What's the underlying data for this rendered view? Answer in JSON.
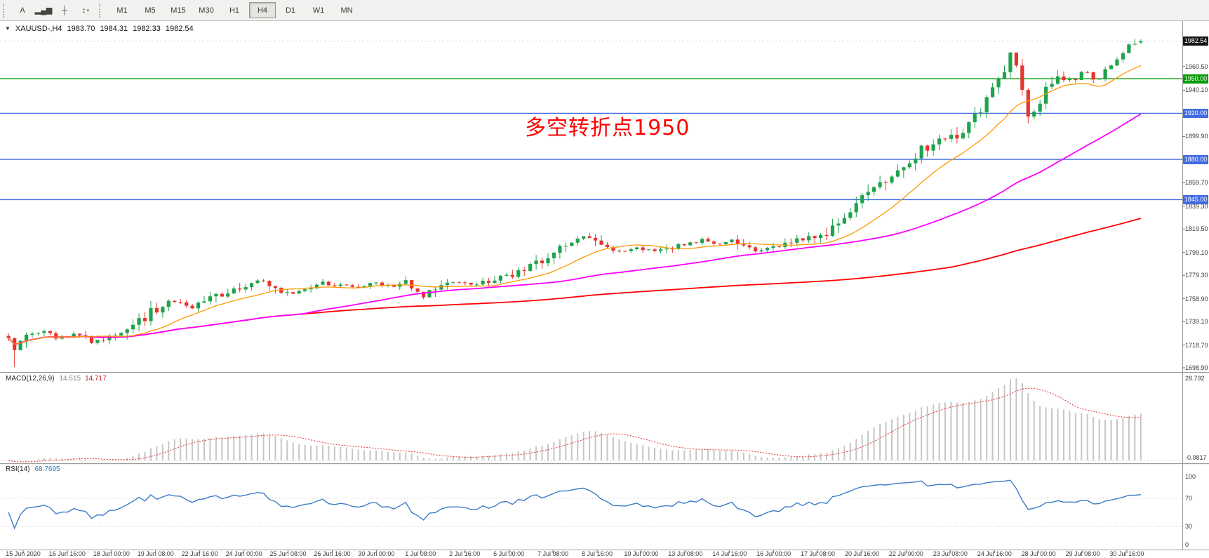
{
  "toolbar": {
    "icon_buttons": [
      {
        "name": "text-tool",
        "glyph": "A"
      },
      {
        "name": "chart-bars",
        "glyph": "▂▄▆"
      },
      {
        "name": "crosshair",
        "glyph": "┼"
      },
      {
        "name": "indicators",
        "glyph": "↕",
        "has_dropdown": true
      }
    ],
    "dropdown_glyph": "▾",
    "timeframes": [
      {
        "label": "M1",
        "active": false
      },
      {
        "label": "M5",
        "active": false
      },
      {
        "label": "M15",
        "active": false
      },
      {
        "label": "M30",
        "active": false
      },
      {
        "label": "H1",
        "active": false
      },
      {
        "label": "H4",
        "active": true
      },
      {
        "label": "D1",
        "active": false
      },
      {
        "label": "W1",
        "active": false
      },
      {
        "label": "MN",
        "active": false
      }
    ]
  },
  "chart": {
    "header": {
      "symbol_period": "XAUUSD-,H4",
      "open": "1983.70",
      "high": "1984.31",
      "low": "1982.33",
      "close": "1982.54"
    },
    "annotation": {
      "text": "多空转折点1950",
      "color": "#ff0000"
    },
    "current_price": {
      "label": "1982.54",
      "value": 1982.54,
      "bg": "#141414"
    },
    "hlines": [
      {
        "value": 1950.0,
        "label": "1950.00",
        "color": "#009b00"
      },
      {
        "value": 1920.0,
        "label": "1920.00",
        "color": "#4169e1"
      },
      {
        "value": 1880.0,
        "label": "1880.00",
        "color": "#4169e1"
      },
      {
        "value": 1845.0,
        "label": "1845.00",
        "color": "#4169e1"
      }
    ],
    "price_ticks": [
      "1960.50",
      "1940.10",
      "1899.90",
      "1859.70",
      "1839.30",
      "1819.50",
      "1799.10",
      "1779.30",
      "1758.90",
      "1739.10",
      "1718.70",
      "1698.90"
    ],
    "colors": {
      "up": "#1fa34d",
      "down": "#e6352b",
      "ma_fast": "#ff9800",
      "ma_mid": "#ff00ff",
      "ma_slow": "#ff0000"
    },
    "price_path": [
      [
        0.0,
        1726
      ],
      [
        0.006,
        1714
      ],
      [
        0.014,
        1727
      ],
      [
        0.03,
        1730
      ],
      [
        0.045,
        1724
      ],
      [
        0.06,
        1729
      ],
      [
        0.075,
        1721
      ],
      [
        0.09,
        1727
      ],
      [
        0.105,
        1731
      ],
      [
        0.118,
        1740
      ],
      [
        0.132,
        1752
      ],
      [
        0.148,
        1757
      ],
      [
        0.162,
        1751
      ],
      [
        0.178,
        1758
      ],
      [
        0.192,
        1764
      ],
      [
        0.208,
        1769
      ],
      [
        0.22,
        1775
      ],
      [
        0.232,
        1769
      ],
      [
        0.248,
        1763
      ],
      [
        0.262,
        1766
      ],
      [
        0.278,
        1772
      ],
      [
        0.292,
        1771
      ],
      [
        0.308,
        1768
      ],
      [
        0.322,
        1774
      ],
      [
        0.338,
        1769
      ],
      [
        0.352,
        1773
      ],
      [
        0.365,
        1759
      ],
      [
        0.378,
        1769
      ],
      [
        0.392,
        1774
      ],
      [
        0.408,
        1771
      ],
      [
        0.422,
        1773
      ],
      [
        0.438,
        1777
      ],
      [
        0.452,
        1783
      ],
      [
        0.468,
        1789
      ],
      [
        0.482,
        1799
      ],
      [
        0.498,
        1808
      ],
      [
        0.51,
        1813
      ],
      [
        0.524,
        1806
      ],
      [
        0.538,
        1799
      ],
      [
        0.552,
        1804
      ],
      [
        0.568,
        1800
      ],
      [
        0.582,
        1803
      ],
      [
        0.598,
        1806
      ],
      [
        0.612,
        1810
      ],
      [
        0.628,
        1807
      ],
      [
        0.642,
        1810
      ],
      [
        0.658,
        1798
      ],
      [
        0.672,
        1803
      ],
      [
        0.688,
        1807
      ],
      [
        0.702,
        1811
      ],
      [
        0.718,
        1815
      ],
      [
        0.732,
        1822
      ],
      [
        0.748,
        1840
      ],
      [
        0.762,
        1855
      ],
      [
        0.778,
        1866
      ],
      [
        0.792,
        1878
      ],
      [
        0.808,
        1889
      ],
      [
        0.822,
        1897
      ],
      [
        0.838,
        1902
      ],
      [
        0.852,
        1916
      ],
      [
        0.866,
        1935
      ],
      [
        0.878,
        1957
      ],
      [
        0.886,
        1972
      ],
      [
        0.894,
        1944
      ],
      [
        0.902,
        1913
      ],
      [
        0.913,
        1936
      ],
      [
        0.926,
        1951
      ],
      [
        0.938,
        1947
      ],
      [
        0.95,
        1957
      ],
      [
        0.962,
        1948
      ],
      [
        0.974,
        1964
      ],
      [
        0.986,
        1976
      ],
      [
        1.0,
        1982
      ]
    ]
  },
  "macd": {
    "name": "MACD(12,26,9)",
    "value1": "14.515",
    "value2": "14.717",
    "axis_max": "28.792",
    "axis_min": "-0.0817"
  },
  "rsi": {
    "name": "RSI(14)",
    "value": "68.7695",
    "axis": [
      "100",
      "70",
      "30",
      "0"
    ],
    "levels": [
      70,
      30
    ],
    "color": "#3b7bc8"
  },
  "time_axis": [
    "15 Jun 2020",
    "16 Jun 16:00",
    "18 Jun 00:00",
    "19 Jun 08:00",
    "22 Jun 16:00",
    "24 Jun 00:00",
    "25 Jun 08:00",
    "26 Jun 16:00",
    "30 Jun 00:00",
    "1 Jul 08:00",
    "2 Jul 16:00",
    "6 Jul 00:00",
    "7 Jul 08:00",
    "8 Jul 16:00",
    "10 Jul 00:00",
    "13 Jul 08:00",
    "14 Jul 16:00",
    "16 Jul 00:00",
    "17 Jul 08:00",
    "20 Jul 16:00",
    "22 Jul 00:00",
    "23 Jul 08:00",
    "24 Jul 16:00",
    "28 Jul 00:00",
    "29 Jul 08:00",
    "30 Jul 16:00"
  ]
}
